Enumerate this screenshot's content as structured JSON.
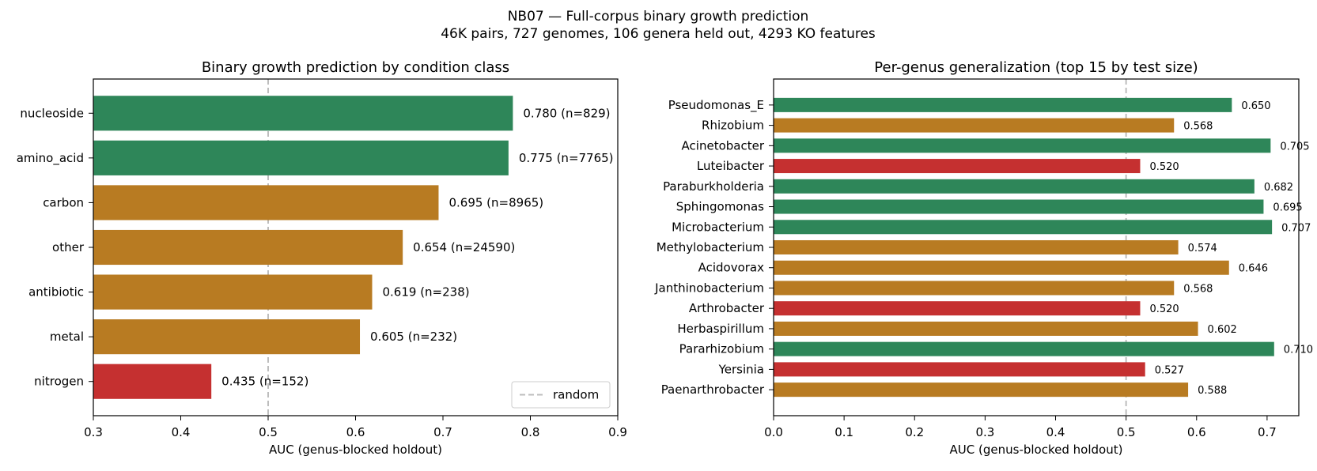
{
  "figure": {
    "title_line1": "NB07 — Full-corpus binary growth prediction",
    "title_line2": "46K pairs, 727 genomes, 106 genera held out, 4293 KO features"
  },
  "colors": {
    "green": "#2e8659",
    "orange": "#b87b22",
    "red": "#c53030",
    "reference": "#bdbdbd"
  },
  "chart_data": [
    {
      "type": "bar",
      "orientation": "horizontal",
      "title": "Binary growth prediction by condition class",
      "xlabel": "AUC (genus-blocked holdout)",
      "xlim": [
        0.3,
        0.9
      ],
      "xticks": [
        "0.3",
        "0.4",
        "0.5",
        "0.6",
        "0.7",
        "0.8",
        "0.9"
      ],
      "categories": [
        "nucleoside",
        "amino_acid",
        "carbon",
        "other",
        "antibiotic",
        "metal",
        "nitrogen"
      ],
      "values": [
        0.78,
        0.775,
        0.695,
        0.654,
        0.619,
        0.605,
        0.435
      ],
      "data_labels": [
        "0.780 (n=829)",
        "0.775 (n=7765)",
        "0.695 (n=8965)",
        "0.654 (n=24590)",
        "0.619 (n=238)",
        "0.605 (n=232)",
        "0.435 (n=152)"
      ],
      "colors": [
        "green",
        "green",
        "orange",
        "orange",
        "orange",
        "orange",
        "red"
      ],
      "reference_line": {
        "x": 0.5,
        "style": "dashed",
        "label": "random"
      },
      "legend": {
        "position": "bottom-right",
        "entries": [
          "random"
        ]
      }
    },
    {
      "type": "bar",
      "orientation": "horizontal",
      "title": "Per-genus generalization (top 15 by test size)",
      "xlabel": "AUC (genus-blocked holdout)",
      "xlim": [
        0.0,
        0.745
      ],
      "xticks": [
        "0.0",
        "0.1",
        "0.2",
        "0.3",
        "0.4",
        "0.5",
        "0.6",
        "0.7"
      ],
      "categories": [
        "Pseudomonas_E",
        "Rhizobium",
        "Acinetobacter",
        "Luteibacter",
        "Paraburkholderia",
        "Sphingomonas",
        "Microbacterium",
        "Methylobacterium",
        "Acidovorax",
        "Janthinobacterium",
        "Arthrobacter",
        "Herbaspirillum",
        "Pararhizobium",
        "Yersinia",
        "Paenarthrobacter"
      ],
      "values": [
        0.65,
        0.568,
        0.705,
        0.52,
        0.682,
        0.695,
        0.707,
        0.574,
        0.646,
        0.568,
        0.52,
        0.602,
        0.71,
        0.527,
        0.588
      ],
      "data_labels": [
        "0.650",
        "0.568",
        "0.705",
        "0.520",
        "0.682",
        "0.695",
        "0.707",
        "0.574",
        "0.646",
        "0.568",
        "0.520",
        "0.602",
        "0.710",
        "0.527",
        "0.588"
      ],
      "colors": [
        "green",
        "orange",
        "green",
        "red",
        "green",
        "green",
        "green",
        "orange",
        "orange",
        "orange",
        "red",
        "orange",
        "green",
        "red",
        "orange"
      ],
      "reference_line": {
        "x": 0.5,
        "style": "dashed"
      }
    }
  ]
}
